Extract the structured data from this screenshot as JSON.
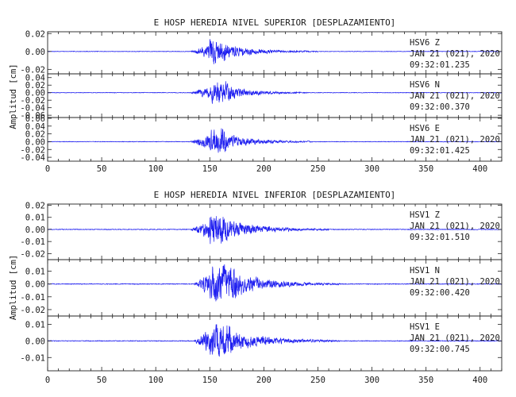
{
  "chart_data": [
    {
      "type": "line",
      "title": "E HOSP HEREDIA NIVEL SUPERIOR [DESPLAZAMIENTO]",
      "ylabel": "Amplitud [cm]",
      "xlim": [
        0,
        420
      ],
      "x_ticks": [
        "0",
        "50",
        "100",
        "150",
        "200",
        "250",
        "300",
        "350",
        "400"
      ],
      "series": [
        {
          "name": "HSV6 Z",
          "station": "HSV6",
          "component": "Z",
          "date": "JAN 21 (021), 2020",
          "time": "09:32:01.235",
          "ylim": [
            -0.025,
            0.022
          ],
          "y_ticks": [
            "0.02",
            "0.00",
            "-0.02"
          ],
          "y_tick_values": [
            0.02,
            0.0,
            -0.02
          ],
          "envelope": {
            "onset": 132,
            "peak_start": 150,
            "peak_end": 165,
            "decay_end": 250,
            "noise": 0.0004,
            "peak_amp": 0.018
          }
        },
        {
          "name": "HSV6 N",
          "station": "HSV6",
          "component": "N",
          "date": "JAN 21 (021), 2020",
          "time": "09:32:00.370",
          "ylim": [
            -0.066,
            0.05
          ],
          "y_ticks": [
            "0.04",
            "0.02",
            "0.00",
            "-0.02",
            "-0.04",
            "-0.06"
          ],
          "y_tick_values": [
            0.04,
            0.02,
            0.0,
            -0.02,
            -0.04,
            -0.06
          ],
          "envelope": {
            "onset": 132,
            "peak_start": 152,
            "peak_end": 168,
            "decay_end": 240,
            "noise": 0.001,
            "peak_amp": 0.04
          }
        },
        {
          "name": "HSV6 E",
          "station": "HSV6",
          "component": "E",
          "date": "JAN 21 (021), 2020",
          "time": "09:32:01.425",
          "ylim": [
            -0.05,
            0.062
          ],
          "y_ticks": [
            "0.06",
            "0.04",
            "0.02",
            "0.00",
            "-0.02",
            "-0.04"
          ],
          "y_tick_values": [
            0.06,
            0.04,
            0.02,
            0.0,
            -0.02,
            -0.04
          ],
          "envelope": {
            "onset": 132,
            "peak_start": 150,
            "peak_end": 165,
            "decay_end": 245,
            "noise": 0.001,
            "peak_amp": 0.045
          }
        }
      ]
    },
    {
      "type": "line",
      "title": "E HOSP HEREDIA NIVEL INFERIOR [DESPLAZAMIENTO]",
      "ylabel": "Amplitud [cm]",
      "xlim": [
        0,
        420
      ],
      "x_ticks": [
        "0",
        "50",
        "100",
        "150",
        "200",
        "250",
        "300",
        "350",
        "400"
      ],
      "series": [
        {
          "name": "HSV1 Z",
          "station": "HSV1",
          "component": "Z",
          "date": "JAN 21 (021), 2020",
          "time": "09:32:01.510",
          "ylim": [
            -0.025,
            0.021
          ],
          "y_ticks": [
            "0.02",
            "0.01",
            "0.00",
            "-0.01",
            "-0.02"
          ],
          "y_tick_values": [
            0.02,
            0.01,
            0.0,
            -0.01,
            -0.02
          ],
          "envelope": {
            "onset": 132,
            "peak_start": 150,
            "peak_end": 165,
            "decay_end": 260,
            "noise": 0.0004,
            "peak_amp": 0.019
          }
        },
        {
          "name": "HSV1 N",
          "station": "HSV1",
          "component": "N",
          "date": "JAN 21 (021), 2020",
          "time": "09:32:00.420",
          "ylim": [
            -0.025,
            0.019
          ],
          "y_ticks": [
            "0.01",
            "0.00",
            "-0.01",
            "-0.02"
          ],
          "y_tick_values": [
            0.01,
            0.0,
            -0.01,
            -0.02
          ],
          "envelope": {
            "onset": 135,
            "peak_start": 150,
            "peak_end": 175,
            "decay_end": 270,
            "noise": 0.0004,
            "peak_amp": 0.02
          }
        },
        {
          "name": "HSV1 E",
          "station": "HSV1",
          "component": "E",
          "date": "JAN 21 (021), 2020",
          "time": "09:32:00.745",
          "ylim": [
            -0.018,
            0.015
          ],
          "y_ticks": [
            "0.01",
            "0.00",
            "-0.01"
          ],
          "y_tick_values": [
            0.01,
            0.0,
            -0.01
          ],
          "envelope": {
            "onset": 135,
            "peak_start": 150,
            "peak_end": 170,
            "decay_end": 270,
            "noise": 0.0003,
            "peak_amp": 0.015
          }
        }
      ]
    }
  ]
}
